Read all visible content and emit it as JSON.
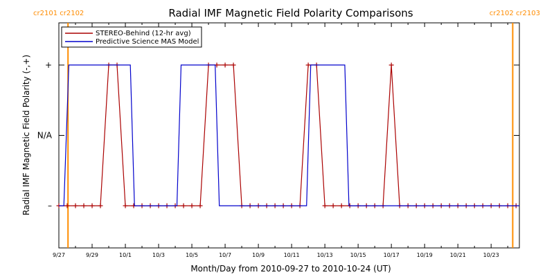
{
  "colors": {
    "stereo": "#aa0000",
    "model": "#0000cc",
    "carrington": "#ff8c00",
    "axis": "#000000"
  },
  "chart_data": {
    "type": "line",
    "title": "Radial IMF Magnetic Field Polarity Comparisons",
    "xlabel": "Month/Day from 2010-09-27 to 2010-10-24 (UT)",
    "ylabel": "Radial IMF Magnetic Field Polarity (-,+)",
    "x_unit": "days after 2010-09-27 00:00 UT",
    "xlim": [
      0,
      27.7
    ],
    "ylim": [
      -1.6,
      1.6
    ],
    "x_ticks": [
      {
        "x": 0,
        "label": "9/27"
      },
      {
        "x": 2,
        "label": "9/29"
      },
      {
        "x": 4,
        "label": "10/1"
      },
      {
        "x": 6,
        "label": "10/3"
      },
      {
        "x": 8,
        "label": "10/5"
      },
      {
        "x": 10,
        "label": "10/7"
      },
      {
        "x": 12,
        "label": "10/9"
      },
      {
        "x": 14,
        "label": "10/11"
      },
      {
        "x": 16,
        "label": "10/13"
      },
      {
        "x": 18,
        "label": "10/15"
      },
      {
        "x": 20,
        "label": "10/17"
      },
      {
        "x": 22,
        "label": "10/19"
      },
      {
        "x": 24,
        "label": "10/21"
      },
      {
        "x": 26,
        "label": "10/23"
      }
    ],
    "y_ticks": [
      {
        "y": 1,
        "label": "+"
      },
      {
        "y": 0,
        "label": "N/A"
      },
      {
        "y": -1,
        "label": "–"
      }
    ],
    "carrington_lines": [
      {
        "x": 0.55,
        "label": "cr2101 cr2102",
        "label_position": "left"
      },
      {
        "x": 27.3,
        "label": "cr2102 cr2103",
        "label_position": "right"
      }
    ],
    "legend_position": "top-left",
    "series": [
      {
        "name": "STEREO-Behind (12-hr avg)",
        "color": "#aa0000",
        "markers": true,
        "points": [
          [
            0.0,
            -1
          ],
          [
            0.5,
            -1
          ],
          [
            1.0,
            -1
          ],
          [
            1.5,
            -1
          ],
          [
            2.0,
            -1
          ],
          [
            2.5,
            -1
          ],
          [
            3.0,
            1
          ],
          [
            3.5,
            1
          ],
          [
            4.0,
            -1
          ],
          [
            4.5,
            -1
          ],
          [
            5.0,
            -1
          ],
          [
            5.5,
            -1
          ],
          [
            6.0,
            -1
          ],
          [
            6.5,
            -1
          ],
          [
            7.0,
            -1
          ],
          [
            7.5,
            -1
          ],
          [
            8.0,
            -1
          ],
          [
            8.5,
            -1
          ],
          [
            9.0,
            1
          ],
          [
            9.5,
            1
          ],
          [
            10.0,
            1
          ],
          [
            10.5,
            1
          ],
          [
            11.0,
            -1
          ],
          [
            11.5,
            -1
          ],
          [
            12.0,
            -1
          ],
          [
            12.5,
            -1
          ],
          [
            13.0,
            -1
          ],
          [
            13.5,
            -1
          ],
          [
            14.0,
            -1
          ],
          [
            14.5,
            -1
          ],
          [
            15.0,
            1
          ],
          [
            15.5,
            1
          ],
          [
            16.0,
            -1
          ],
          [
            16.5,
            -1
          ],
          [
            17.0,
            -1
          ],
          [
            17.5,
            -1
          ],
          [
            18.0,
            -1
          ],
          [
            18.5,
            -1
          ],
          [
            19.0,
            -1
          ],
          [
            19.5,
            -1
          ],
          [
            20.0,
            1
          ],
          [
            20.5,
            -1
          ],
          [
            21.0,
            -1
          ],
          [
            21.5,
            -1
          ],
          [
            22.0,
            -1
          ],
          [
            22.5,
            -1
          ],
          [
            23.0,
            -1
          ],
          [
            23.5,
            -1
          ],
          [
            24.0,
            -1
          ],
          [
            24.5,
            -1
          ],
          [
            25.0,
            -1
          ],
          [
            25.5,
            -1
          ],
          [
            26.0,
            -1
          ],
          [
            26.5,
            -1
          ],
          [
            27.0,
            -1
          ],
          [
            27.5,
            -1
          ]
        ]
      },
      {
        "name": "Predictive Science MAS Model",
        "color": "#0000cc",
        "markers": false,
        "points": [
          [
            0.0,
            -1
          ],
          [
            0.3,
            -1
          ],
          [
            0.6,
            1
          ],
          [
            4.3,
            1
          ],
          [
            4.55,
            -1
          ],
          [
            7.1,
            -1
          ],
          [
            7.35,
            1
          ],
          [
            9.4,
            1
          ],
          [
            9.65,
            -1
          ],
          [
            14.9,
            -1
          ],
          [
            15.15,
            1
          ],
          [
            17.2,
            1
          ],
          [
            17.45,
            -1
          ],
          [
            27.7,
            -1
          ]
        ]
      }
    ]
  }
}
